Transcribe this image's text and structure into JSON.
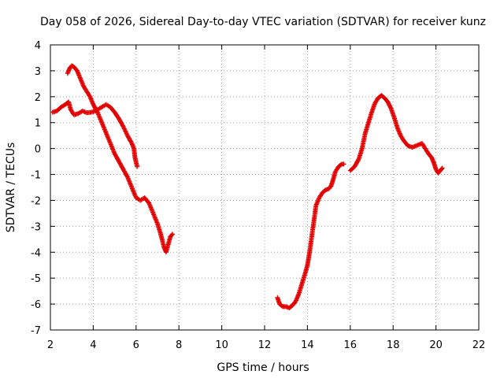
{
  "chart_data": {
    "type": "scatter",
    "title": "Day 058 of 2026, Sidereal Day-to-day VTEC variation (SDTVAR) for receiver kunz",
    "xlabel": "GPS time / hours",
    "ylabel": "SDTVAR / TECUs",
    "xlim": [
      2,
      22
    ],
    "ylim": [
      -7,
      4
    ],
    "xticks": [
      2,
      4,
      6,
      8,
      10,
      12,
      14,
      16,
      18,
      20,
      22
    ],
    "yticks": [
      4,
      3,
      2,
      1,
      0,
      -1,
      -2,
      -3,
      -4,
      -5,
      -6,
      -7
    ],
    "grid": true,
    "marker": "+",
    "color": "#e00000",
    "series": [
      {
        "name": "segment-1",
        "points": [
          [
            2.1,
            1.4
          ],
          [
            2.3,
            1.45
          ],
          [
            2.5,
            1.6
          ],
          [
            2.7,
            1.7
          ],
          [
            2.85,
            1.8
          ],
          [
            2.95,
            1.5
          ],
          [
            3.1,
            1.3
          ],
          [
            3.3,
            1.35
          ],
          [
            3.5,
            1.45
          ],
          [
            3.7,
            1.38
          ],
          [
            3.9,
            1.4
          ],
          [
            4.1,
            1.45
          ],
          [
            4.3,
            1.55
          ],
          [
            4.5,
            1.65
          ],
          [
            4.6,
            1.7
          ],
          [
            4.8,
            1.6
          ],
          [
            5.0,
            1.4
          ],
          [
            5.2,
            1.15
          ],
          [
            5.4,
            0.85
          ],
          [
            5.6,
            0.5
          ],
          [
            5.8,
            0.2
          ],
          [
            5.9,
            0.0
          ],
          [
            5.95,
            -0.35
          ],
          [
            6.05,
            -0.7
          ]
        ]
      },
      {
        "name": "segment-2",
        "points": [
          [
            2.8,
            2.9
          ],
          [
            2.9,
            3.1
          ],
          [
            3.0,
            3.2
          ],
          [
            3.1,
            3.15
          ],
          [
            3.25,
            3.0
          ],
          [
            3.4,
            2.7
          ],
          [
            3.55,
            2.4
          ],
          [
            3.7,
            2.2
          ],
          [
            3.85,
            2.0
          ],
          [
            4.0,
            1.7
          ],
          [
            4.2,
            1.4
          ],
          [
            4.4,
            1.0
          ],
          [
            4.6,
            0.6
          ],
          [
            4.8,
            0.2
          ],
          [
            5.0,
            -0.2
          ],
          [
            5.2,
            -0.5
          ],
          [
            5.4,
            -0.8
          ],
          [
            5.6,
            -1.1
          ],
          [
            5.8,
            -1.5
          ],
          [
            6.0,
            -1.9
          ],
          [
            6.2,
            -2.0
          ],
          [
            6.4,
            -1.9
          ],
          [
            6.6,
            -2.1
          ],
          [
            6.8,
            -2.5
          ],
          [
            7.0,
            -2.9
          ],
          [
            7.15,
            -3.3
          ],
          [
            7.3,
            -3.8
          ],
          [
            7.4,
            -4.0
          ],
          [
            7.5,
            -3.7
          ],
          [
            7.6,
            -3.4
          ],
          [
            7.7,
            -3.3
          ]
        ]
      },
      {
        "name": "segment-3",
        "points": [
          [
            12.6,
            -5.75
          ],
          [
            12.7,
            -6.0
          ],
          [
            12.85,
            -6.1
          ],
          [
            13.0,
            -6.1
          ],
          [
            13.15,
            -6.15
          ],
          [
            13.3,
            -6.05
          ],
          [
            13.45,
            -5.9
          ],
          [
            13.6,
            -5.6
          ],
          [
            13.75,
            -5.2
          ],
          [
            13.9,
            -4.8
          ],
          [
            14.0,
            -4.5
          ],
          [
            14.1,
            -4.0
          ],
          [
            14.2,
            -3.4
          ],
          [
            14.3,
            -2.8
          ],
          [
            14.4,
            -2.2
          ],
          [
            14.55,
            -1.9
          ],
          [
            14.7,
            -1.7
          ],
          [
            14.85,
            -1.6
          ],
          [
            15.0,
            -1.55
          ],
          [
            15.1,
            -1.45
          ],
          [
            15.2,
            -1.2
          ],
          [
            15.3,
            -0.9
          ],
          [
            15.45,
            -0.7
          ],
          [
            15.6,
            -0.6
          ],
          [
            15.7,
            -0.6
          ]
        ]
      },
      {
        "name": "segment-4",
        "points": [
          [
            16.0,
            -0.85
          ],
          [
            16.2,
            -0.7
          ],
          [
            16.4,
            -0.4
          ],
          [
            16.55,
            0.0
          ],
          [
            16.7,
            0.6
          ],
          [
            16.85,
            1.0
          ],
          [
            17.0,
            1.4
          ],
          [
            17.15,
            1.75
          ],
          [
            17.3,
            1.95
          ],
          [
            17.45,
            2.05
          ],
          [
            17.6,
            1.95
          ],
          [
            17.75,
            1.8
          ],
          [
            17.9,
            1.55
          ],
          [
            18.05,
            1.2
          ],
          [
            18.2,
            0.8
          ],
          [
            18.35,
            0.5
          ],
          [
            18.5,
            0.3
          ],
          [
            18.7,
            0.1
          ],
          [
            18.9,
            0.05
          ],
          [
            19.05,
            0.1
          ],
          [
            19.2,
            0.15
          ],
          [
            19.35,
            0.2
          ],
          [
            19.5,
            0.0
          ],
          [
            19.65,
            -0.2
          ],
          [
            19.8,
            -0.35
          ],
          [
            19.9,
            -0.55
          ],
          [
            20.0,
            -0.8
          ],
          [
            20.1,
            -0.95
          ],
          [
            20.2,
            -0.85
          ],
          [
            20.3,
            -0.75
          ]
        ]
      }
    ]
  }
}
